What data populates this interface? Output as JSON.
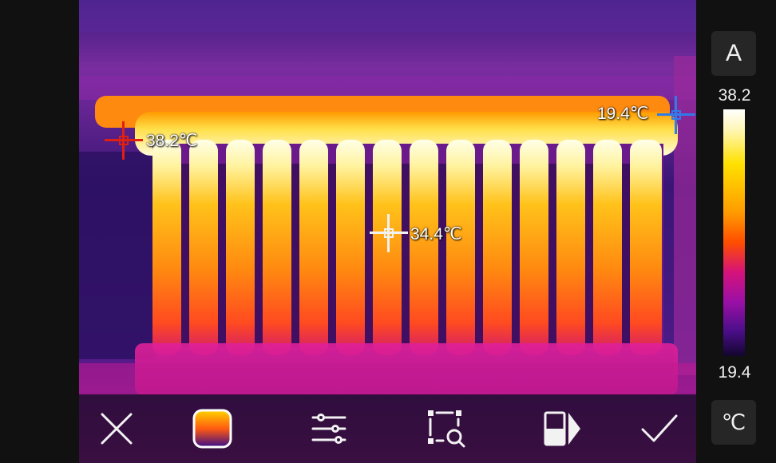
{
  "markers": {
    "max": {
      "label": "38.2℃",
      "color": "#e02010"
    },
    "center": {
      "label": "34.4℃",
      "color": "#f2f2f2"
    },
    "min": {
      "label": "19.4℃",
      "color": "#2f7be8"
    }
  },
  "scale": {
    "mode_label": "A",
    "max_label": "38.2",
    "min_label": "19.4",
    "unit_label": "℃",
    "palette": "iron"
  },
  "toolbar": [
    {
      "icon": "close-icon"
    },
    {
      "icon": "palette-icon"
    },
    {
      "icon": "settings-sliders-icon"
    },
    {
      "icon": "measure-tools-icon"
    },
    {
      "icon": "image-mode-icon"
    },
    {
      "icon": "confirm-check-icon"
    }
  ],
  "colors": {
    "toolbar_bg": "#1e0a28",
    "hot": "#ffffff",
    "warm": "#ff9a00",
    "cool": "#b0158c",
    "cold": "#1a0a50"
  }
}
